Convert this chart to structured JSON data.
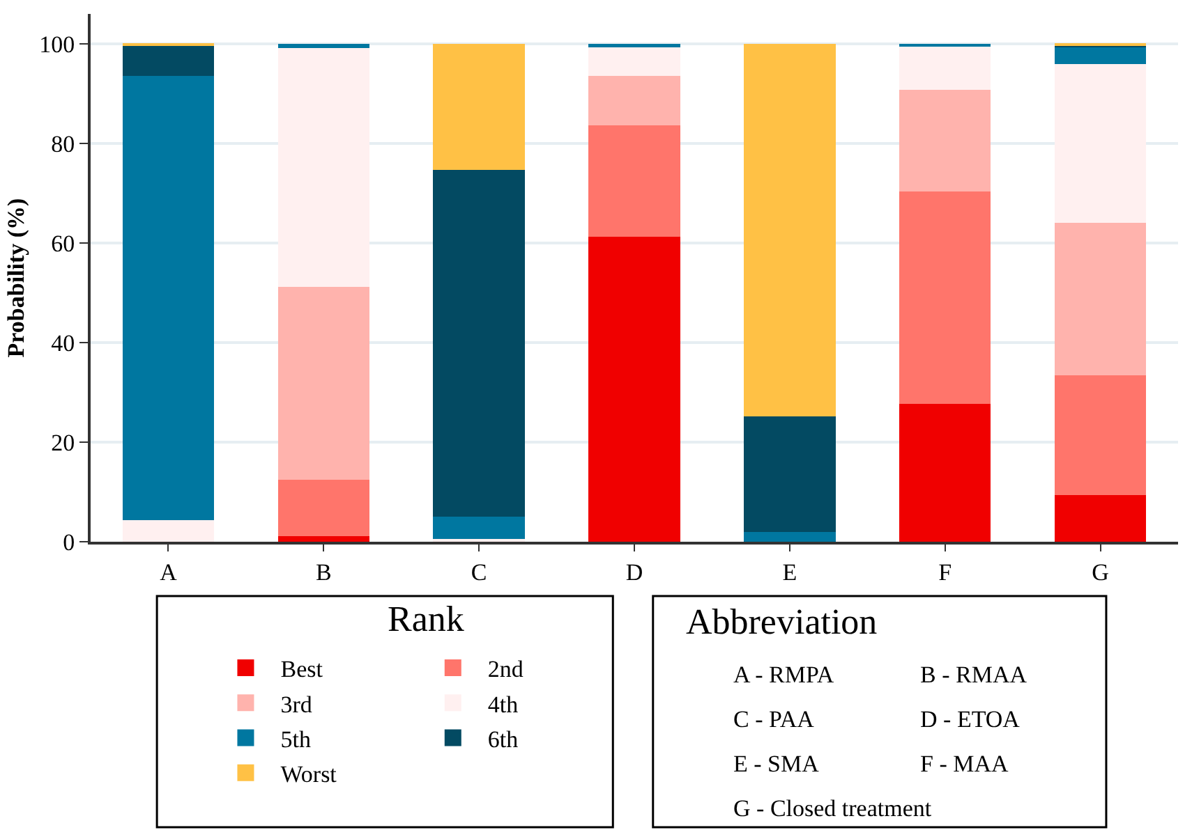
{
  "chart_data": {
    "type": "bar",
    "stacked": true,
    "ylabel": "Probability (%)",
    "legend_title": "Rank",
    "categories": [
      "A",
      "B",
      "C",
      "D",
      "E",
      "F",
      "G"
    ],
    "series": [
      {
        "name": "Best",
        "color": "#f00000",
        "values": [
          0,
          1.1,
          0,
          61.3,
          0,
          27.7,
          9.4
        ]
      },
      {
        "name": "2nd",
        "color": "#ff756b",
        "values": [
          0,
          11.4,
          0,
          22.3,
          0,
          42.7,
          24.0
        ]
      },
      {
        "name": "3rd",
        "color": "#ffb3ad",
        "values": [
          0,
          38.7,
          0,
          9.9,
          0,
          20.4,
          30.7
        ]
      },
      {
        "name": "4th",
        "color": "#fff0f0",
        "values": [
          4.4,
          47.9,
          0.6,
          6.0,
          0,
          8.6,
          31.9
        ]
      },
      {
        "name": "5th",
        "color": "#0077a0",
        "values": [
          89.2,
          0.9,
          4.5,
          0.5,
          1.9,
          0.6,
          3.5
        ]
      },
      {
        "name": "6th",
        "color": "#034a62",
        "values": [
          6.1,
          0,
          69.6,
          0,
          23.3,
          0,
          0.3
        ]
      },
      {
        "name": "Worst",
        "color": "#ffc145",
        "values": [
          0.3,
          0,
          25.3,
          0,
          74.8,
          0,
          0.2
        ]
      }
    ],
    "ylim": [
      0,
      106
    ],
    "yticks": [
      0,
      20,
      40,
      60,
      80,
      100
    ],
    "grid": "y",
    "legend": "bottom",
    "annotations": [
      "Abbreviation",
      "A - RMPA",
      "B - RMAA",
      "C - PAA",
      "D - ETOA",
      "E - SMA",
      "F - MAA",
      "G - Closed treatment"
    ]
  }
}
